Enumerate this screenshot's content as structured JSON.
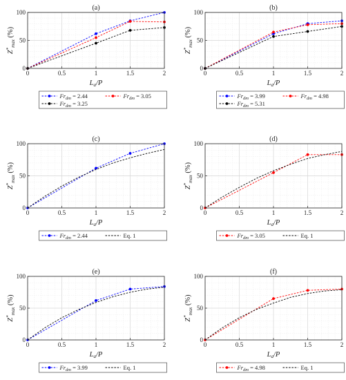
{
  "chart_data": [
    {
      "type": "line",
      "title": "(a)",
      "xlabel": "La/P",
      "ylabel": "Z*max (%)",
      "xlim": [
        0,
        2
      ],
      "ylim": [
        0,
        100
      ],
      "xticks": [
        "0",
        "0.5",
        "1",
        "1.5",
        "2"
      ],
      "yticks": [
        "0",
        "50",
        "100"
      ],
      "grid": true,
      "legend_placement": "below",
      "x": [
        0,
        1,
        1.5,
        2
      ],
      "series": [
        {
          "name": "Fr_dm = 2.44",
          "color": "#0000ff",
          "style": "dashed",
          "markers": true,
          "values": [
            0,
            62,
            85,
            100
          ]
        },
        {
          "name": "Fr_dm = 3.05",
          "color": "#ff0000",
          "style": "dashed",
          "markers": true,
          "values": [
            0,
            55,
            84,
            83
          ]
        },
        {
          "name": "Fr_dm = 3.25",
          "color": "#000000",
          "style": "dashed",
          "markers": true,
          "values": [
            0,
            45,
            68,
            73
          ]
        }
      ]
    },
    {
      "type": "line",
      "title": "(b)",
      "xlabel": "La/P",
      "ylabel": "Z*max (%)",
      "xlim": [
        0,
        2
      ],
      "ylim": [
        0,
        100
      ],
      "xticks": [
        "0",
        "0.5",
        "1",
        "1.5",
        "2"
      ],
      "yticks": [
        "0",
        "50",
        "100"
      ],
      "grid": true,
      "legend_placement": "below",
      "x": [
        0,
        1,
        1.5,
        2
      ],
      "series": [
        {
          "name": "Fr_dm = 3.99",
          "color": "#0000ff",
          "style": "dashed",
          "markers": true,
          "values": [
            0,
            62,
            80,
            85
          ]
        },
        {
          "name": "Fr_dm = 4.98",
          "color": "#ff0000",
          "style": "dashed",
          "markers": true,
          "values": [
            0,
            65,
            78,
            80
          ]
        },
        {
          "name": "Fr_dm = 5.31",
          "color": "#000000",
          "style": "dashed",
          "markers": true,
          "values": [
            0,
            57,
            66,
            75
          ]
        }
      ]
    },
    {
      "type": "line",
      "title": "(c)",
      "xlabel": "La/P",
      "ylabel": "Z*max (%)",
      "xlim": [
        0,
        2
      ],
      "ylim": [
        0,
        100
      ],
      "xticks": [
        "0",
        "0.5",
        "1",
        "1.5",
        "2"
      ],
      "yticks": [
        "0",
        "50",
        "100"
      ],
      "grid": true,
      "legend_placement": "below",
      "series": [
        {
          "name": "Fr_dm = 2.44",
          "color": "#0000ff",
          "style": "dashed",
          "markers": true,
          "x": [
            0,
            1,
            1.5,
            2
          ],
          "values": [
            0,
            62,
            85,
            100
          ]
        },
        {
          "name": "Eq. 1",
          "color": "#000000",
          "style": "dashed",
          "markers": false,
          "x": [
            0,
            0.25,
            0.5,
            0.75,
            1,
            1.25,
            1.5,
            1.75,
            2
          ],
          "values": [
            0,
            18,
            34,
            48,
            60,
            70,
            78,
            85,
            91
          ]
        }
      ]
    },
    {
      "type": "line",
      "title": "(d)",
      "xlabel": "La/P",
      "ylabel": "Z*max (%)",
      "xlim": [
        0,
        2
      ],
      "ylim": [
        0,
        100
      ],
      "xticks": [
        "0",
        "0.5",
        "1",
        "1.5",
        "2"
      ],
      "yticks": [
        "0",
        "50",
        "100"
      ],
      "grid": true,
      "legend_placement": "below",
      "series": [
        {
          "name": "Fr_dm = 3.05",
          "color": "#ff0000",
          "style": "dashed",
          "markers": true,
          "x": [
            0,
            1,
            1.5,
            2
          ],
          "values": [
            0,
            55,
            83,
            83
          ]
        },
        {
          "name": "Eq. 1",
          "color": "#000000",
          "style": "dashed",
          "markers": false,
          "x": [
            0,
            0.25,
            0.5,
            0.75,
            1,
            1.25,
            1.5,
            1.75,
            2
          ],
          "values": [
            0,
            17,
            32,
            46,
            58,
            68,
            77,
            83,
            88
          ]
        }
      ]
    },
    {
      "type": "line",
      "title": "(e)",
      "xlabel": "La/P",
      "ylabel": "Z*max (%)",
      "xlim": [
        0,
        2
      ],
      "ylim": [
        0,
        100
      ],
      "xticks": [
        "0",
        "0.5",
        "1",
        "1.5",
        "2"
      ],
      "yticks": [
        "0",
        "50",
        "100"
      ],
      "grid": true,
      "legend_placement": "below",
      "series": [
        {
          "name": "Fr_dm = 3.99",
          "color": "#0000ff",
          "style": "dashed",
          "markers": true,
          "x": [
            0,
            1,
            1.5,
            2
          ],
          "values": [
            0,
            62,
            80,
            84
          ]
        },
        {
          "name": "Eq. 1",
          "color": "#000000",
          "style": "dashed",
          "markers": false,
          "x": [
            0,
            0.25,
            0.5,
            0.75,
            1,
            1.25,
            1.5,
            1.75,
            2
          ],
          "values": [
            0,
            19,
            35,
            48,
            59,
            68,
            75,
            80,
            83
          ]
        }
      ]
    },
    {
      "type": "line",
      "title": "(f)",
      "xlabel": "La/P",
      "ylabel": "Z*max (%)",
      "xlim": [
        0,
        2
      ],
      "ylim": [
        0,
        100
      ],
      "xticks": [
        "0",
        "0.5",
        "1",
        "1.5",
        "2"
      ],
      "yticks": [
        "0",
        "50",
        "100"
      ],
      "grid": true,
      "legend_placement": "below",
      "series": [
        {
          "name": "Fr_dm = 4.98",
          "color": "#ff0000",
          "style": "dashed",
          "markers": true,
          "x": [
            0,
            1,
            1.5,
            2
          ],
          "values": [
            0,
            65,
            78,
            80
          ]
        },
        {
          "name": "Eq. 1",
          "color": "#000000",
          "style": "dashed",
          "markers": false,
          "x": [
            0,
            0.25,
            0.5,
            0.75,
            1,
            1.25,
            1.5,
            1.75,
            2
          ],
          "values": [
            0,
            19,
            35,
            48,
            58,
            67,
            73,
            77,
            79
          ]
        }
      ]
    }
  ]
}
